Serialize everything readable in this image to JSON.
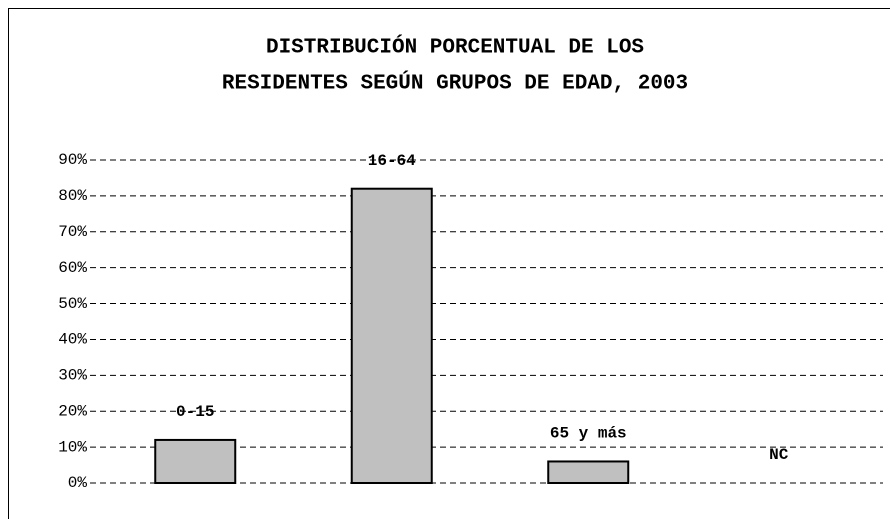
{
  "chart_data": {
    "type": "bar",
    "title": [
      "DISTRIBUCIÓN PORCENTUAL DE LOS",
      "RESIDENTES SEGÚN GRUPOS DE EDAD, 2003"
    ],
    "categories": [
      "0-15",
      "16-64",
      "65 y más",
      "NC"
    ],
    "values": [
      12,
      82,
      6,
      0
    ],
    "color": "#c0c0c0",
    "ylim": [
      0,
      90
    ],
    "yticks": [
      {
        "value": 0,
        "label": "0%"
      },
      {
        "value": 10,
        "label": "10%"
      },
      {
        "value": 20,
        "label": "20%"
      },
      {
        "value": 30,
        "label": "30%"
      },
      {
        "value": 40,
        "label": "40%"
      },
      {
        "value": 50,
        "label": "50%"
      },
      {
        "value": 60,
        "label": "60%"
      },
      {
        "value": 70,
        "label": "70%"
      },
      {
        "value": 80,
        "label": "80%"
      },
      {
        "value": 90,
        "label": "90%"
      }
    ],
    "grid": true
  }
}
